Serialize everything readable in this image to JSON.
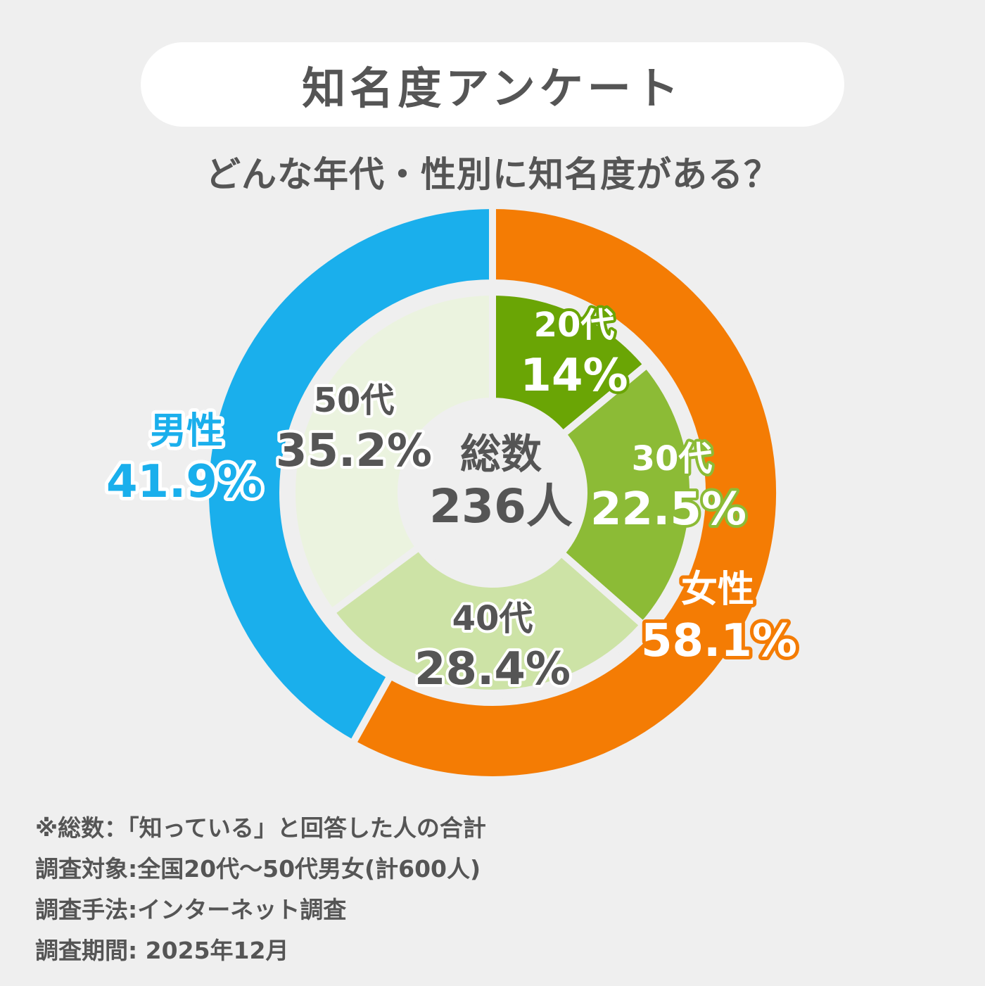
{
  "header": {
    "title": "知名度アンケート",
    "subtitle": "どんな年代・性別に知名度がある？"
  },
  "colors": {
    "male": "#1aafec",
    "female": "#f47c04",
    "age20": "#6aa505",
    "age30": "#8cbb36",
    "age40": "#cde3a6",
    "age50": "#ebf3df",
    "text": "#555555",
    "background": "#efefef"
  },
  "chart_data": [
    {
      "type": "pie",
      "ring": "outer",
      "series": [
        {
          "name": "男性",
          "value": 41.9,
          "label": "41.9%"
        },
        {
          "name": "女性",
          "value": 58.1,
          "label": "58.1%"
        }
      ]
    },
    {
      "type": "pie",
      "ring": "inner",
      "center_label": "総数",
      "center_value": "236人",
      "series": [
        {
          "name": "20代",
          "value": 14,
          "label": "14%"
        },
        {
          "name": "30代",
          "value": 22.5,
          "label": "22.5%"
        },
        {
          "name": "40代",
          "value": 28.4,
          "label": "28.4%"
        },
        {
          "name": "50代",
          "value": 35.2,
          "label": "35.2%"
        }
      ]
    }
  ],
  "notes": [
    "※総数：「知っている」と回答した人の合計",
    "調査対象:全国20代～50代男女(計600人)",
    "調査手法:インターネット調査",
    "調査期間: 2025年12月"
  ]
}
